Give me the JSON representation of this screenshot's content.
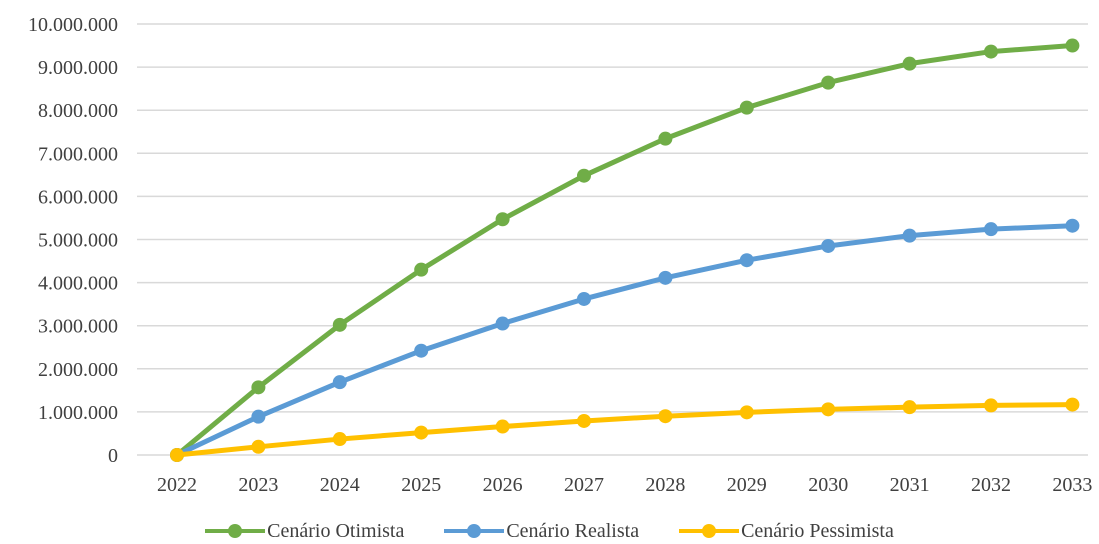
{
  "chart_data": {
    "type": "line",
    "title": "",
    "xlabel": "",
    "ylabel": "",
    "categories": [
      "2022",
      "2023",
      "2024",
      "2025",
      "2026",
      "2027",
      "2028",
      "2029",
      "2030",
      "2031",
      "2032",
      "2033"
    ],
    "ylim": [
      0,
      10000000
    ],
    "yticks": [
      0,
      1000000,
      2000000,
      3000000,
      4000000,
      5000000,
      6000000,
      7000000,
      8000000,
      9000000,
      10000000
    ],
    "ytick_labels": [
      "0",
      "1.000.000",
      "2.000.000",
      "3.000.000",
      "4.000.000",
      "5.000.000",
      "6.000.000",
      "7.000.000",
      "8.000.000",
      "9.000.000",
      "10.000.000"
    ],
    "grid": "horizontal",
    "legend_position": "bottom",
    "series": [
      {
        "name": "Cenário Otimista",
        "color": "#70AD47",
        "values": [
          0,
          1570000,
          3020000,
          4300000,
          5470000,
          6480000,
          7340000,
          8060000,
          8640000,
          9080000,
          9360000,
          9500000
        ]
      },
      {
        "name": "Cenário Realista",
        "color": "#5B9BD5",
        "values": [
          0,
          890000,
          1690000,
          2420000,
          3050000,
          3620000,
          4110000,
          4520000,
          4850000,
          5090000,
          5240000,
          5320000
        ]
      },
      {
        "name": "Cenário Pessimista",
        "color": "#FFC000",
        "values": [
          0,
          190000,
          370000,
          520000,
          660000,
          790000,
          900000,
          990000,
          1060000,
          1110000,
          1150000,
          1170000
        ]
      }
    ]
  }
}
